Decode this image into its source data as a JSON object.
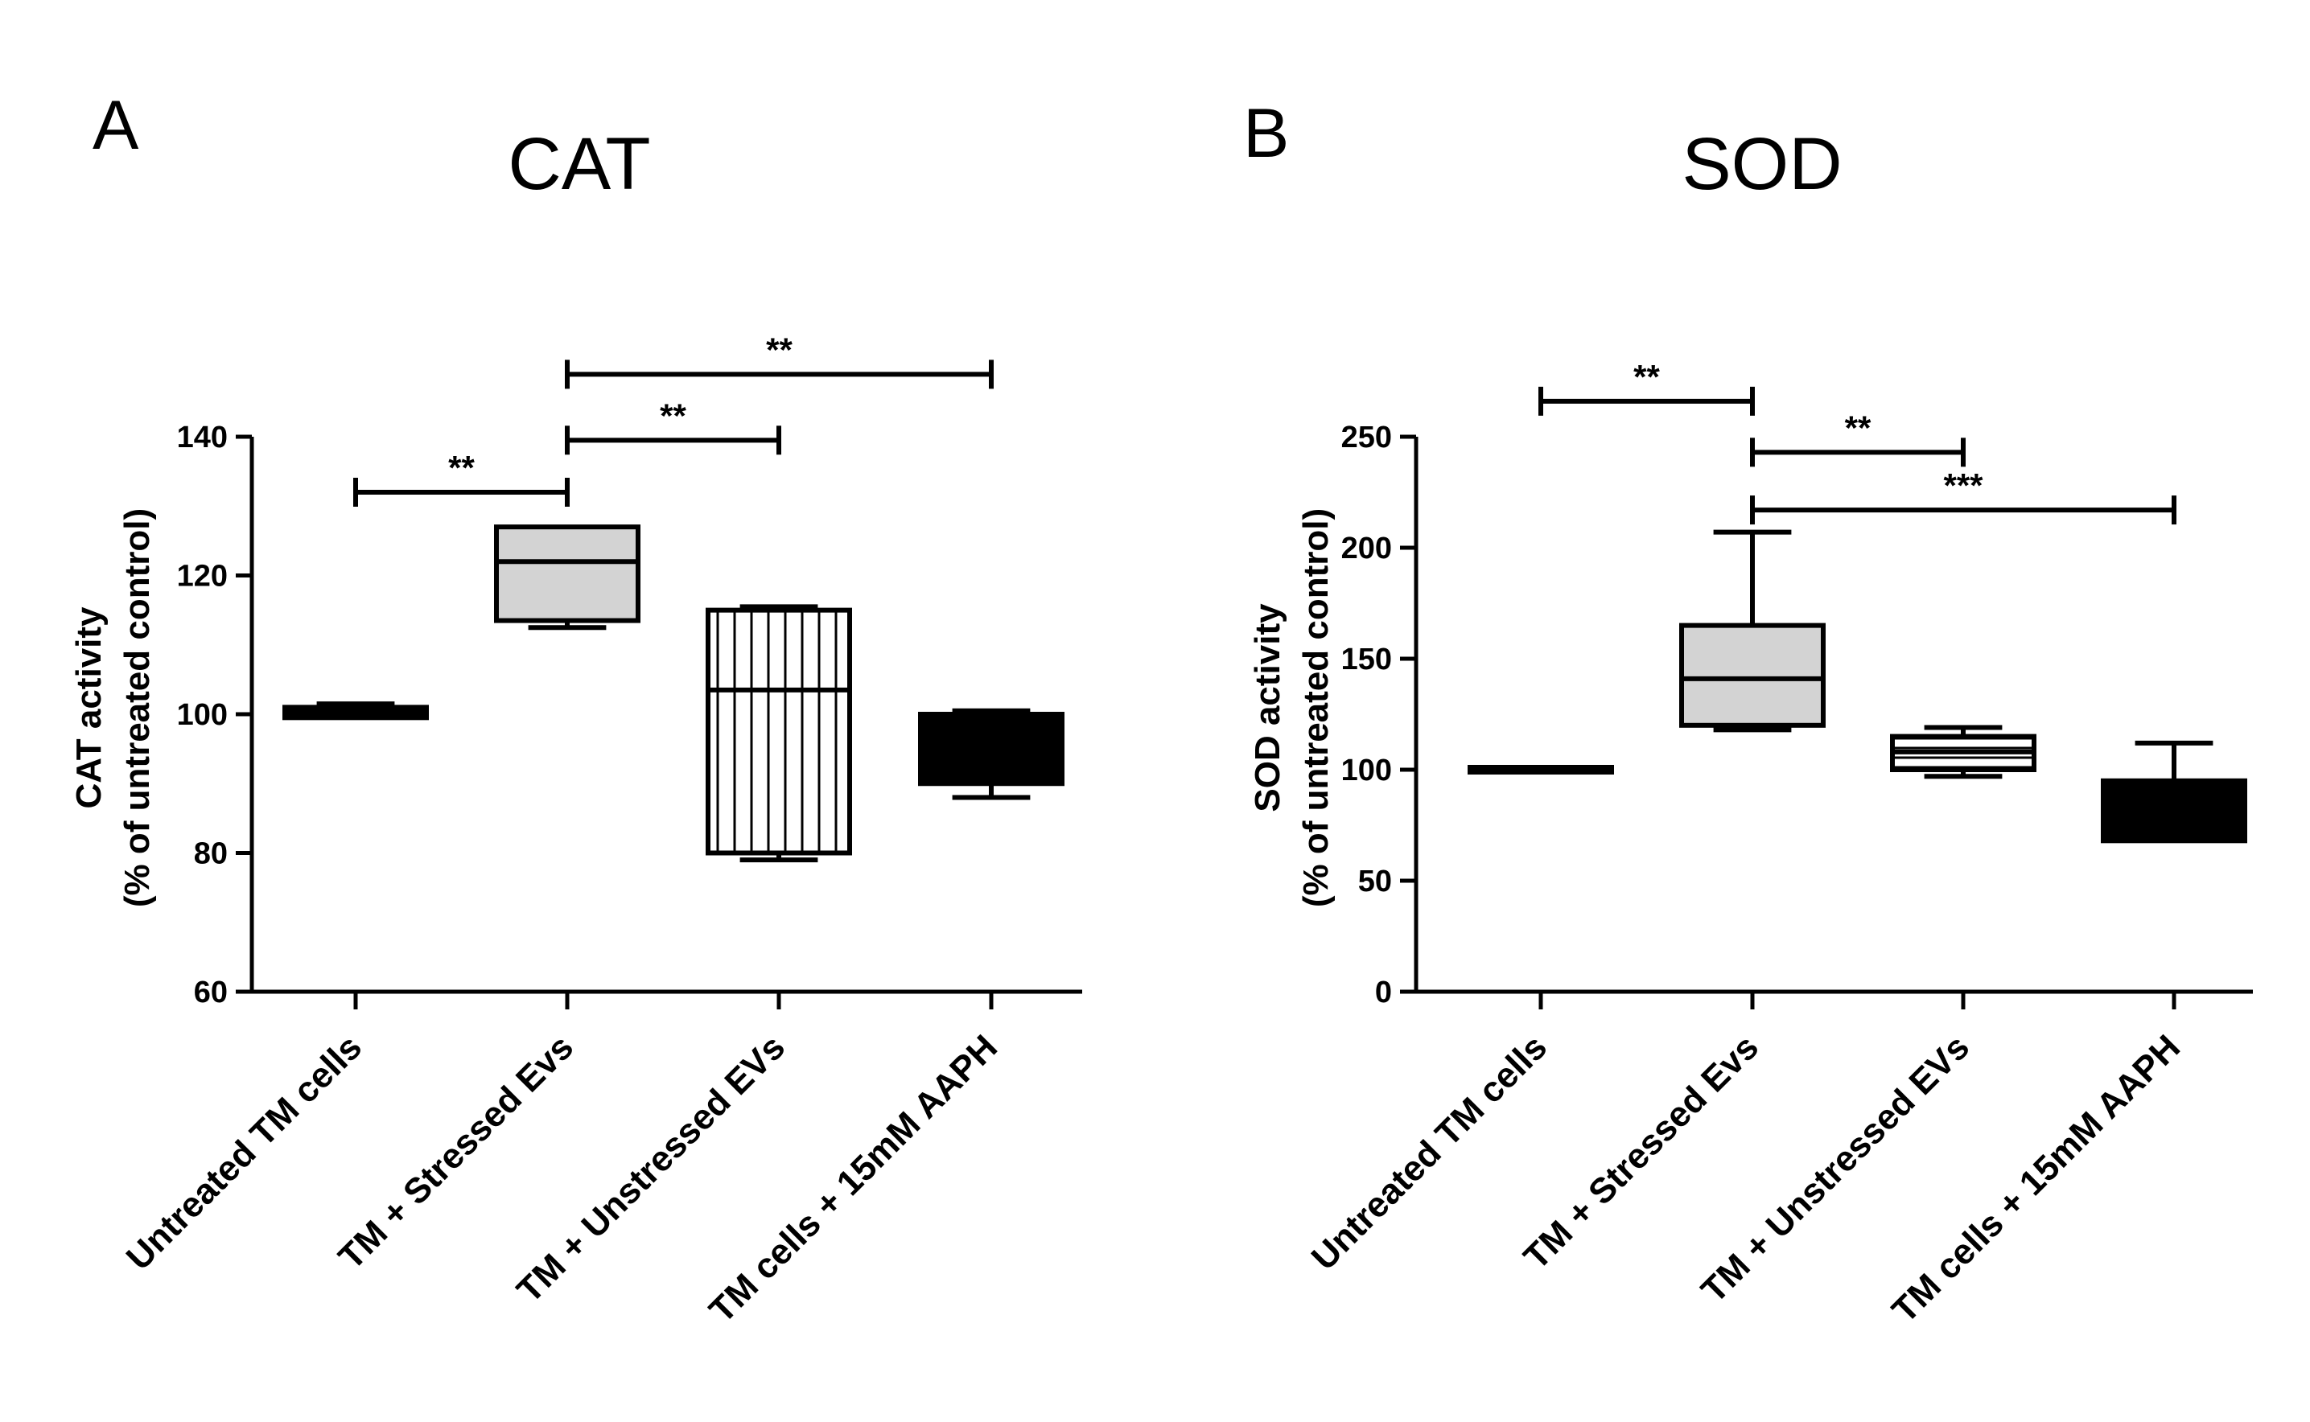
{
  "chart_data": [
    {
      "type": "box",
      "panel_label": "A",
      "title": "CAT",
      "ylabel_line1": "CAT activity",
      "ylabel_line2": "(% of untreated control)",
      "ylim": [
        60,
        140
      ],
      "yticks": [
        60,
        80,
        100,
        120,
        140
      ],
      "categories": [
        "Untreated TM cells",
        "TM + Stressed Evs",
        "TM + Unstressed EVs",
        "TM cells + 15mM AAPH"
      ],
      "boxes": [
        {
          "min": 99.5,
          "q1": 99.5,
          "median": 100,
          "q3": 101,
          "max": 101.5,
          "fill": "#000000"
        },
        {
          "min": 112.5,
          "q1": 113.5,
          "median": 122,
          "q3": 127,
          "max": 127,
          "fill": "#d3d3d3"
        },
        {
          "min": 79,
          "q1": 80,
          "median": 103.5,
          "q3": 115,
          "max": 115.5,
          "fill": "vertical-lines"
        },
        {
          "min": 88,
          "q1": 90,
          "median": 99,
          "q3": 100,
          "max": 100.5,
          "fill": "#000000"
        }
      ],
      "significance": [
        {
          "from": 0,
          "to": 1,
          "label": "**",
          "y": 132
        },
        {
          "from": 1,
          "to": 2,
          "label": "**",
          "y": 139.5
        },
        {
          "from": 1,
          "to": 3,
          "label": "**",
          "y": 149
        }
      ]
    },
    {
      "type": "box",
      "panel_label": "B",
      "title": "SOD",
      "ylabel_line1": "SOD activity",
      "ylabel_line2": "(% of untreated control)",
      "ylim": [
        0,
        250
      ],
      "yticks": [
        0,
        50,
        100,
        150,
        200,
        250
      ],
      "categories": [
        "Untreated TM cells",
        "TM + Stressed Evs",
        "TM + Unstressed EVs",
        "TM cells + 15mM AAPH"
      ],
      "boxes": [
        {
          "min": 100,
          "q1": 100,
          "median": 100,
          "q3": 100,
          "max": 100,
          "fill": "#000000"
        },
        {
          "min": 118,
          "q1": 120,
          "median": 141,
          "q3": 165,
          "max": 207,
          "fill": "#d3d3d3"
        },
        {
          "min": 97,
          "q1": 100,
          "median": 108,
          "q3": 115,
          "max": 119,
          "fill": "horizontal-lines"
        },
        {
          "min": 68,
          "q1": 68,
          "median": 80,
          "q3": 95,
          "max": 112,
          "fill": "#000000"
        }
      ],
      "significance": [
        {
          "from": 0,
          "to": 1,
          "label": "**",
          "y": 266
        },
        {
          "from": 1,
          "to": 2,
          "label": "**",
          "y": 243
        },
        {
          "from": 1,
          "to": 3,
          "label": "***",
          "y": 217
        }
      ]
    }
  ]
}
